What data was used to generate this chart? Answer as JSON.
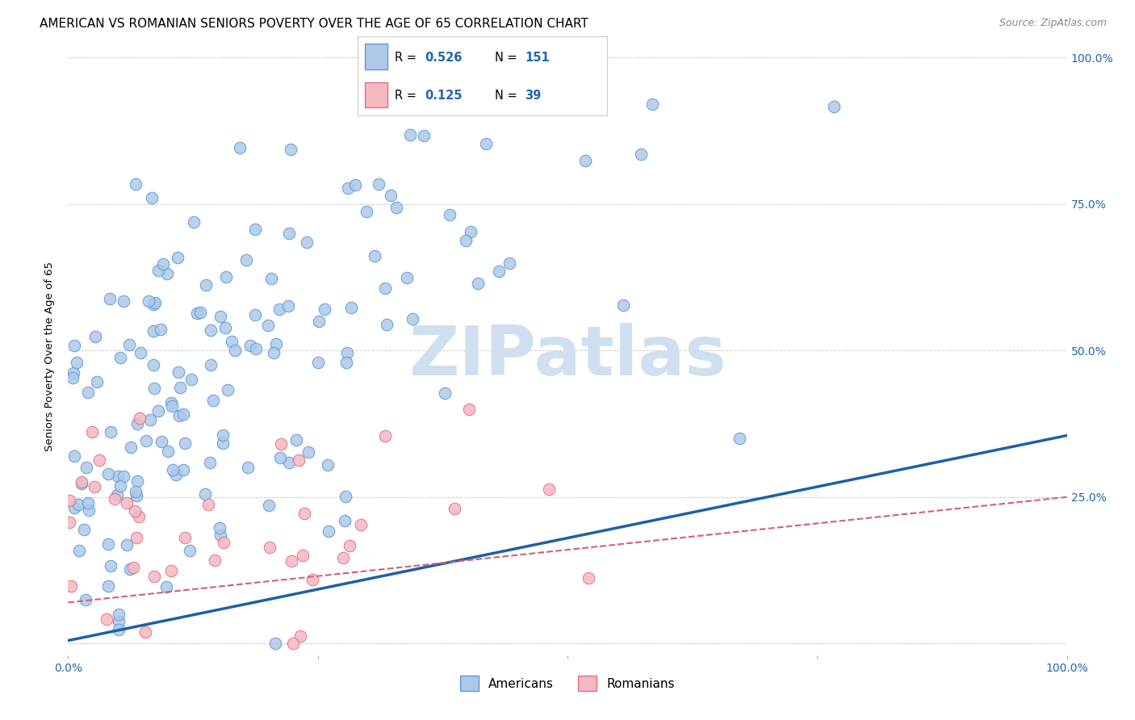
{
  "title": "AMERICAN VS ROMANIAN SENIORS POVERTY OVER THE AGE OF 65 CORRELATION CHART",
  "source": "Source: ZipAtlas.com",
  "ylabel": "Seniors Poverty Over the Age of 65",
  "american_R": 0.526,
  "american_N": 151,
  "romanian_R": 0.125,
  "romanian_N": 39,
  "american_color": "#aec8e8",
  "american_edge": "#5b9bd5",
  "romanian_color": "#f4b8c1",
  "romanian_edge": "#e07080",
  "trend_american_color": "#1f5fa6",
  "trend_romanian_color": "#d45f70",
  "xlim": [
    0.0,
    1.0
  ],
  "ylim": [
    -0.02,
    1.0
  ],
  "xticks": [
    0.0,
    0.25,
    0.5,
    0.75,
    1.0
  ],
  "yticks": [
    0.0,
    0.25,
    0.5,
    0.75,
    1.0
  ],
  "right_yticklabels": [
    "",
    "25.0%",
    "50.0%",
    "75.0%",
    "100.0%"
  ],
  "xticklabels_show": [
    "0.0%",
    "",
    "",
    "",
    "100.0%"
  ],
  "title_fontsize": 11,
  "source_fontsize": 9,
  "label_fontsize": 9.5,
  "tick_fontsize": 10,
  "legend_fontsize": 11,
  "watermark_color": "#d0dff0",
  "watermark_fontsize": 62,
  "figsize": [
    14.06,
    8.92
  ],
  "dpi": 100
}
